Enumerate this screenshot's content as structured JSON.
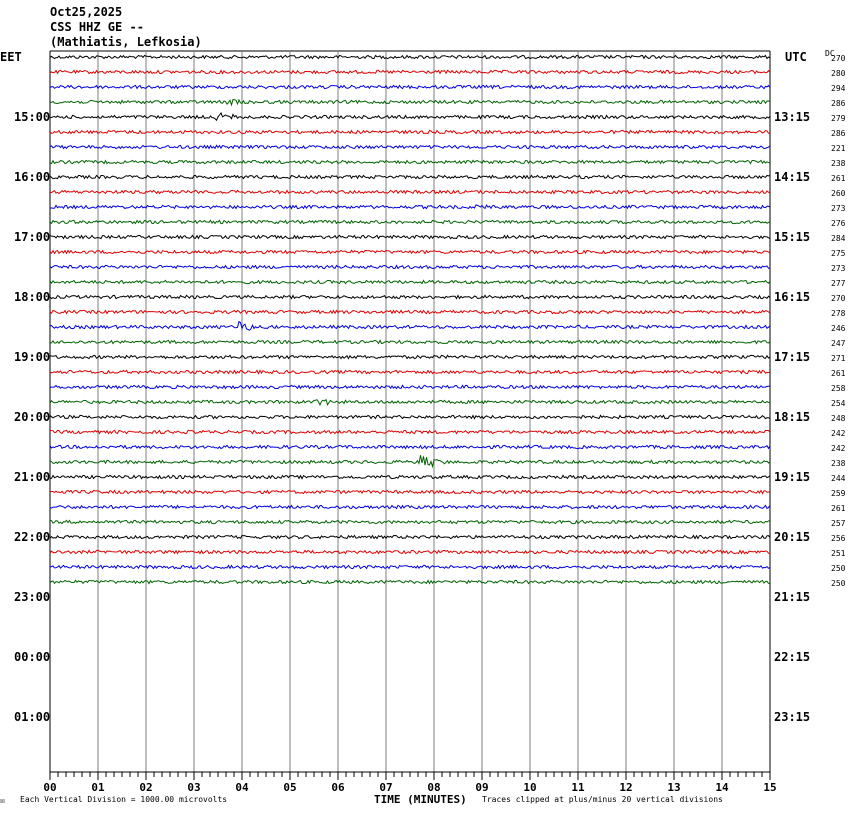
{
  "header": {
    "date": "Oct25,2025",
    "station": "CSS HHZ GE --",
    "location": "(Mathiatis, Lefkosia)"
  },
  "left_tz": "EET",
  "right_tz": "UTC",
  "dc_label": "DC",
  "footer": {
    "corner": "☒",
    "vertical_division": "Each Vertical Division = 1000.00 microvolts",
    "xlabel": "TIME (MINUTES)",
    "clip_note": "Traces clipped at plus/minus 20 vertical divisions"
  },
  "colors": {
    "trace": [
      "#000000",
      "#e00000",
      "#0000e0",
      "#006400"
    ],
    "grid": "#7f7f7f",
    "background": "#ffffff"
  },
  "chart_data": {
    "type": "line",
    "minutes_per_line": 15,
    "x_ticks": [
      "00",
      "01",
      "02",
      "03",
      "04",
      "05",
      "06",
      "07",
      "08",
      "09",
      "10",
      "11",
      "12",
      "13",
      "14",
      "15"
    ],
    "xlim": [
      0,
      15
    ],
    "rows": 48,
    "left_hour_labels": [
      "15:00",
      "16:00",
      "17:00",
      "18:00",
      "19:00",
      "20:00",
      "21:00",
      "22:00",
      "23:00",
      "00:00",
      "01:00"
    ],
    "right_hour_labels": [
      "13:15",
      "14:15",
      "15:15",
      "16:15",
      "17:15",
      "18:15",
      "19:15",
      "20:15",
      "21:15",
      "22:15",
      "23:15"
    ],
    "dc_offsets": [
      270,
      280,
      294,
      286,
      279,
      286,
      221,
      238,
      261,
      260,
      273,
      276,
      284,
      275,
      273,
      277,
      270,
      278,
      246,
      247,
      271,
      261,
      258,
      254,
      248,
      242,
      242,
      238,
      244,
      259,
      261,
      257,
      256,
      251,
      250,
      250
    ],
    "events": [
      {
        "trace": 3,
        "minute": 3.7,
        "amplitude": 3
      },
      {
        "trace": 4,
        "minute": 3.5,
        "amplitude": 6
      },
      {
        "trace": 9,
        "minute": 3.1,
        "amplitude": 2
      },
      {
        "trace": 10,
        "minute": 8.9,
        "amplitude": 2
      },
      {
        "trace": 18,
        "minute": 4.0,
        "amplitude": 7
      },
      {
        "trace": 23,
        "minute": 5.6,
        "amplitude": 4
      },
      {
        "trace": 27,
        "minute": 7.8,
        "amplitude": 8
      }
    ]
  }
}
